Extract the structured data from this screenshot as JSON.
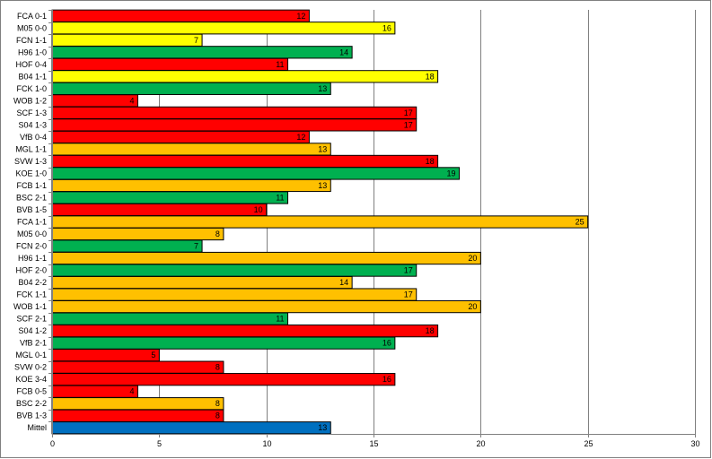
{
  "chart_data": {
    "type": "bar",
    "orientation": "horizontal",
    "title": "",
    "xlabel": "",
    "ylabel": "",
    "xlim": [
      0,
      30
    ],
    "x_ticks": [
      0,
      5,
      10,
      15,
      20,
      25,
      30
    ],
    "grid": "vertical",
    "legend": "none",
    "colors": {
      "red": "#ff0000",
      "yellow": "#ffff00",
      "green": "#00b050",
      "orange": "#ffc000",
      "blue": "#0070c0"
    },
    "bars": [
      {
        "label": "FCA 0-1",
        "value": 12,
        "color": "red"
      },
      {
        "label": "M05 0-0",
        "value": 16,
        "color": "yellow"
      },
      {
        "label": "FCN 1-1",
        "value": 7,
        "color": "yellow"
      },
      {
        "label": "H96 1-0",
        "value": 14,
        "color": "green"
      },
      {
        "label": "HOF 0-4",
        "value": 11,
        "color": "red"
      },
      {
        "label": "B04 1-1",
        "value": 18,
        "color": "yellow"
      },
      {
        "label": "FCK 1-0",
        "value": 13,
        "color": "green"
      },
      {
        "label": "WOB 1-2",
        "value": 4,
        "color": "red"
      },
      {
        "label": "SCF 1-3",
        "value": 17,
        "color": "red"
      },
      {
        "label": "S04 1-3",
        "value": 17,
        "color": "red"
      },
      {
        "label": "VfB 0-4",
        "value": 12,
        "color": "red"
      },
      {
        "label": "MGL 1-1",
        "value": 13,
        "color": "orange"
      },
      {
        "label": "SVW 1-3",
        "value": 18,
        "color": "red"
      },
      {
        "label": "KOE 1-0",
        "value": 19,
        "color": "green"
      },
      {
        "label": "FCB 1-1",
        "value": 13,
        "color": "orange"
      },
      {
        "label": "BSC 2-1",
        "value": 11,
        "color": "green"
      },
      {
        "label": "BVB 1-5",
        "value": 10,
        "color": "red"
      },
      {
        "label": "FCA 1-1",
        "value": 25,
        "color": "orange"
      },
      {
        "label": "M05 0-0",
        "value": 8,
        "color": "orange"
      },
      {
        "label": "FCN 2-0",
        "value": 7,
        "color": "green"
      },
      {
        "label": "H96 1-1",
        "value": 20,
        "color": "orange"
      },
      {
        "label": "HOF 2-0",
        "value": 17,
        "color": "green"
      },
      {
        "label": "B04 2-2",
        "value": 14,
        "color": "orange"
      },
      {
        "label": "FCK 1-1",
        "value": 17,
        "color": "orange"
      },
      {
        "label": "WOB 1-1",
        "value": 20,
        "color": "orange"
      },
      {
        "label": "SCF 2-1",
        "value": 11,
        "color": "green"
      },
      {
        "label": "S04 1-2",
        "value": 18,
        "color": "red"
      },
      {
        "label": "VfB 2-1",
        "value": 16,
        "color": "green"
      },
      {
        "label": "MGL 0-1",
        "value": 5,
        "color": "red"
      },
      {
        "label": "SVW 0-2",
        "value": 8,
        "color": "red"
      },
      {
        "label": "KOE 3-4",
        "value": 16,
        "color": "red"
      },
      {
        "label": "FCB 0-5",
        "value": 4,
        "color": "red"
      },
      {
        "label": "BSC 2-2",
        "value": 8,
        "color": "orange"
      },
      {
        "label": "BVB 1-3",
        "value": 8,
        "color": "red"
      },
      {
        "label": "Mittel",
        "value": 13,
        "color": "blue"
      }
    ]
  }
}
